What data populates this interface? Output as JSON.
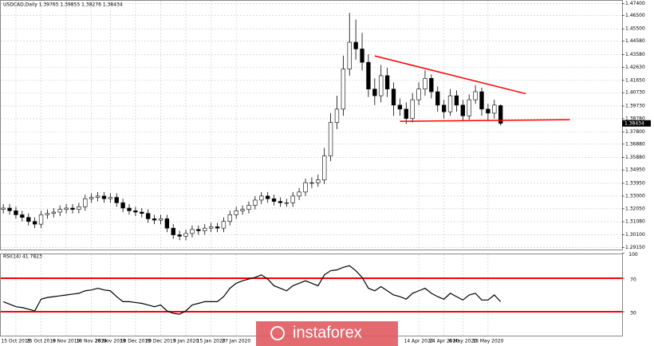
{
  "chart_data": [
    {
      "type": "candlestick",
      "title": "USDCAD,Daily 1.39765 1.39855 1.38276 1.38434",
      "x": [
        0,
        1,
        2,
        3,
        4,
        5,
        6,
        7,
        8,
        9,
        10,
        11,
        12,
        13,
        14,
        15,
        16,
        17,
        18,
        19,
        20,
        21,
        22,
        23,
        24,
        25,
        26,
        27,
        28,
        29,
        30,
        31,
        32,
        33,
        34,
        35,
        36,
        37,
        38,
        39,
        40,
        41,
        42,
        43,
        44,
        45,
        46,
        47,
        48,
        49,
        50,
        51,
        52,
        53,
        54,
        55,
        56,
        57,
        58,
        59,
        60,
        61,
        62,
        63,
        64,
        65,
        66,
        67,
        68,
        69,
        70,
        71,
        72,
        73,
        74,
        75,
        76,
        77,
        78,
        79
      ],
      "open": [
        1.32,
        1.321,
        1.319,
        1.316,
        1.314,
        1.311,
        1.309,
        1.316,
        1.317,
        1.318,
        1.32,
        1.321,
        1.32,
        1.322,
        1.328,
        1.329,
        1.33,
        1.328,
        1.329,
        1.325,
        1.321,
        1.319,
        1.318,
        1.317,
        1.313,
        1.312,
        1.313,
        1.306,
        1.301,
        1.3,
        1.302,
        1.305,
        1.304,
        1.306,
        1.307,
        1.306,
        1.311,
        1.316,
        1.319,
        1.32,
        1.323,
        1.327,
        1.33,
        1.328,
        1.326,
        1.325,
        1.325,
        1.33,
        1.333,
        1.34,
        1.34,
        1.342,
        1.36,
        1.385,
        1.395,
        1.425,
        1.445,
        1.44,
        1.43,
        1.41,
        1.405,
        1.42,
        1.41,
        1.398,
        1.395,
        1.388,
        1.402,
        1.41,
        1.418,
        1.408,
        1.398,
        1.393,
        1.405,
        1.398,
        1.39,
        1.402,
        1.408,
        1.395,
        1.392,
        1.39765
      ],
      "high": [
        1.324,
        1.324,
        1.322,
        1.319,
        1.317,
        1.314,
        1.319,
        1.32,
        1.321,
        1.323,
        1.324,
        1.324,
        1.325,
        1.331,
        1.332,
        1.333,
        1.333,
        1.332,
        1.332,
        1.328,
        1.324,
        1.322,
        1.321,
        1.32,
        1.316,
        1.316,
        1.316,
        1.309,
        1.304,
        1.305,
        1.308,
        1.308,
        1.309,
        1.31,
        1.31,
        1.314,
        1.319,
        1.322,
        1.323,
        1.326,
        1.33,
        1.333,
        1.333,
        1.331,
        1.329,
        1.328,
        1.333,
        1.336,
        1.343,
        1.344,
        1.346,
        1.366,
        1.392,
        1.405,
        1.435,
        1.467,
        1.462,
        1.452,
        1.436,
        1.418,
        1.428,
        1.426,
        1.415,
        1.403,
        1.4,
        1.407,
        1.415,
        1.424,
        1.421,
        1.412,
        1.402,
        1.41,
        1.409,
        1.402,
        1.406,
        1.413,
        1.411,
        1.399,
        1.402,
        1.39855
      ],
      "low": [
        1.317,
        1.316,
        1.313,
        1.311,
        1.308,
        1.306,
        1.306,
        1.313,
        1.314,
        1.315,
        1.317,
        1.317,
        1.317,
        1.319,
        1.325,
        1.326,
        1.325,
        1.325,
        1.322,
        1.318,
        1.316,
        1.315,
        1.314,
        1.31,
        1.309,
        1.309,
        1.303,
        1.298,
        1.297,
        1.297,
        1.299,
        1.301,
        1.301,
        1.303,
        1.303,
        1.303,
        1.308,
        1.313,
        1.316,
        1.317,
        1.32,
        1.324,
        1.325,
        1.323,
        1.322,
        1.322,
        1.322,
        1.327,
        1.33,
        1.336,
        1.337,
        1.339,
        1.356,
        1.38,
        1.39,
        1.42,
        1.432,
        1.424,
        1.404,
        1.398,
        1.4,
        1.404,
        1.39,
        1.39,
        1.384,
        1.385,
        1.398,
        1.405,
        1.403,
        1.393,
        1.388,
        1.39,
        1.393,
        1.386,
        1.387,
        1.399,
        1.39,
        1.386,
        1.388,
        1.38276
      ],
      "close": [
        1.321,
        1.319,
        1.316,
        1.314,
        1.311,
        1.309,
        1.316,
        1.317,
        1.318,
        1.32,
        1.321,
        1.32,
        1.322,
        1.328,
        1.329,
        1.33,
        1.328,
        1.329,
        1.325,
        1.321,
        1.319,
        1.318,
        1.317,
        1.313,
        1.312,
        1.313,
        1.306,
        1.301,
        1.3,
        1.302,
        1.305,
        1.304,
        1.306,
        1.307,
        1.306,
        1.311,
        1.316,
        1.319,
        1.32,
        1.323,
        1.327,
        1.33,
        1.328,
        1.326,
        1.325,
        1.325,
        1.33,
        1.333,
        1.34,
        1.34,
        1.342,
        1.36,
        1.385,
        1.395,
        1.425,
        1.445,
        1.44,
        1.43,
        1.41,
        1.405,
        1.42,
        1.41,
        1.398,
        1.395,
        1.388,
        1.402,
        1.41,
        1.418,
        1.408,
        1.398,
        1.393,
        1.405,
        1.398,
        1.39,
        1.402,
        1.408,
        1.395,
        1.392,
        1.398,
        1.38434
      ],
      "up_color": "#ffffff",
      "down_color": "#000000",
      "xlim": [
        -0.4,
        98.3
      ],
      "ylim": [
        1.29,
        1.476
      ],
      "xticks": [
        {
          "value": 2,
          "label": "15 Oct 2019"
        },
        {
          "value": 6,
          "label": "25 Oct 2019"
        },
        {
          "value": 10,
          "label": "6 Nov 2019"
        },
        {
          "value": 14,
          "label": "18 Nov 2019"
        },
        {
          "value": 17,
          "label": "28 Nov 2019"
        },
        {
          "value": 21,
          "label": "10 Dec 2019"
        },
        {
          "value": 25,
          "label": "20 Dec 2019"
        },
        {
          "value": 29,
          "label": "3 Jan 2020"
        },
        {
          "value": 33,
          "label": "15 Jan 2020"
        },
        {
          "value": 37,
          "label": "27 Jan 2020"
        },
        {
          "value": 66,
          "label": "14 Apr 2020"
        },
        {
          "value": 70,
          "label": "24 Apr 2020"
        },
        {
          "value": 73,
          "label": "6 May 2020"
        },
        {
          "value": 77,
          "label": "18 May 2020"
        }
      ],
      "yticks": [
        {
          "value": 1.474,
          "label": "1.47400"
        },
        {
          "value": 1.465,
          "label": "1.46500"
        },
        {
          "value": 1.455,
          "label": "1.45500"
        },
        {
          "value": 1.4458,
          "label": "1.44580"
        },
        {
          "value": 1.4358,
          "label": "1.43580"
        },
        {
          "value": 1.4263,
          "label": "1.42630"
        },
        {
          "value": 1.4165,
          "label": "1.41650"
        },
        {
          "value": 1.4073,
          "label": "1.40730"
        },
        {
          "value": 1.3973,
          "label": "1.39730"
        },
        {
          "value": 1.3878,
          "label": "1.38780"
        },
        {
          "value": 1.378,
          "label": "1.37800"
        },
        {
          "value": 1.3688,
          "label": "1.36880"
        },
        {
          "value": 1.3588,
          "label": "1.35880"
        },
        {
          "value": 1.3495,
          "label": "1.34950"
        },
        {
          "value": 1.3395,
          "label": "1.33950"
        },
        {
          "value": 1.33,
          "label": "1.33000"
        },
        {
          "value": 1.3205,
          "label": "1.32050"
        },
        {
          "value": 1.3108,
          "label": "1.31080"
        },
        {
          "value": 1.301,
          "label": "1.30100"
        },
        {
          "value": 1.2915,
          "label": "1.29150"
        }
      ],
      "grid": true,
      "last_price": 1.38434,
      "trendlines": [
        {
          "x": [
            59,
            83
          ],
          "y": [
            1.4348,
            1.4065
          ],
          "color": "#ff0000"
        },
        {
          "x": [
            63,
            90
          ],
          "y": [
            1.3859,
            1.3871
          ],
          "color": "#ff0000"
        }
      ],
      "watermark": "instaforex"
    },
    {
      "type": "line",
      "title": "RSI(14) 41.7823",
      "series": [
        {
          "color": "#000000",
          "values": [
            42,
            39,
            36,
            35,
            33,
            31,
            45,
            47,
            48,
            49,
            50,
            51,
            52,
            55,
            56,
            58,
            56,
            55,
            48,
            42,
            42,
            41,
            40,
            38,
            36,
            38,
            31,
            28,
            27,
            31,
            38,
            40,
            42,
            42,
            42,
            48,
            58,
            64,
            67,
            69,
            71,
            74,
            69,
            61,
            58,
            55,
            61,
            64,
            67,
            64,
            61,
            74,
            79,
            80,
            83,
            85,
            79,
            71,
            58,
            55,
            60,
            55,
            50,
            48,
            45,
            52,
            55,
            58,
            52,
            48,
            45,
            52,
            48,
            44,
            50,
            52,
            44,
            44,
            50,
            42
          ]
        }
      ],
      "ylim": [
        0,
        100
      ],
      "yticks": [
        100,
        70,
        30
      ],
      "levels": [
        70,
        30
      ],
      "level_color": "#ff0000"
    }
  ]
}
